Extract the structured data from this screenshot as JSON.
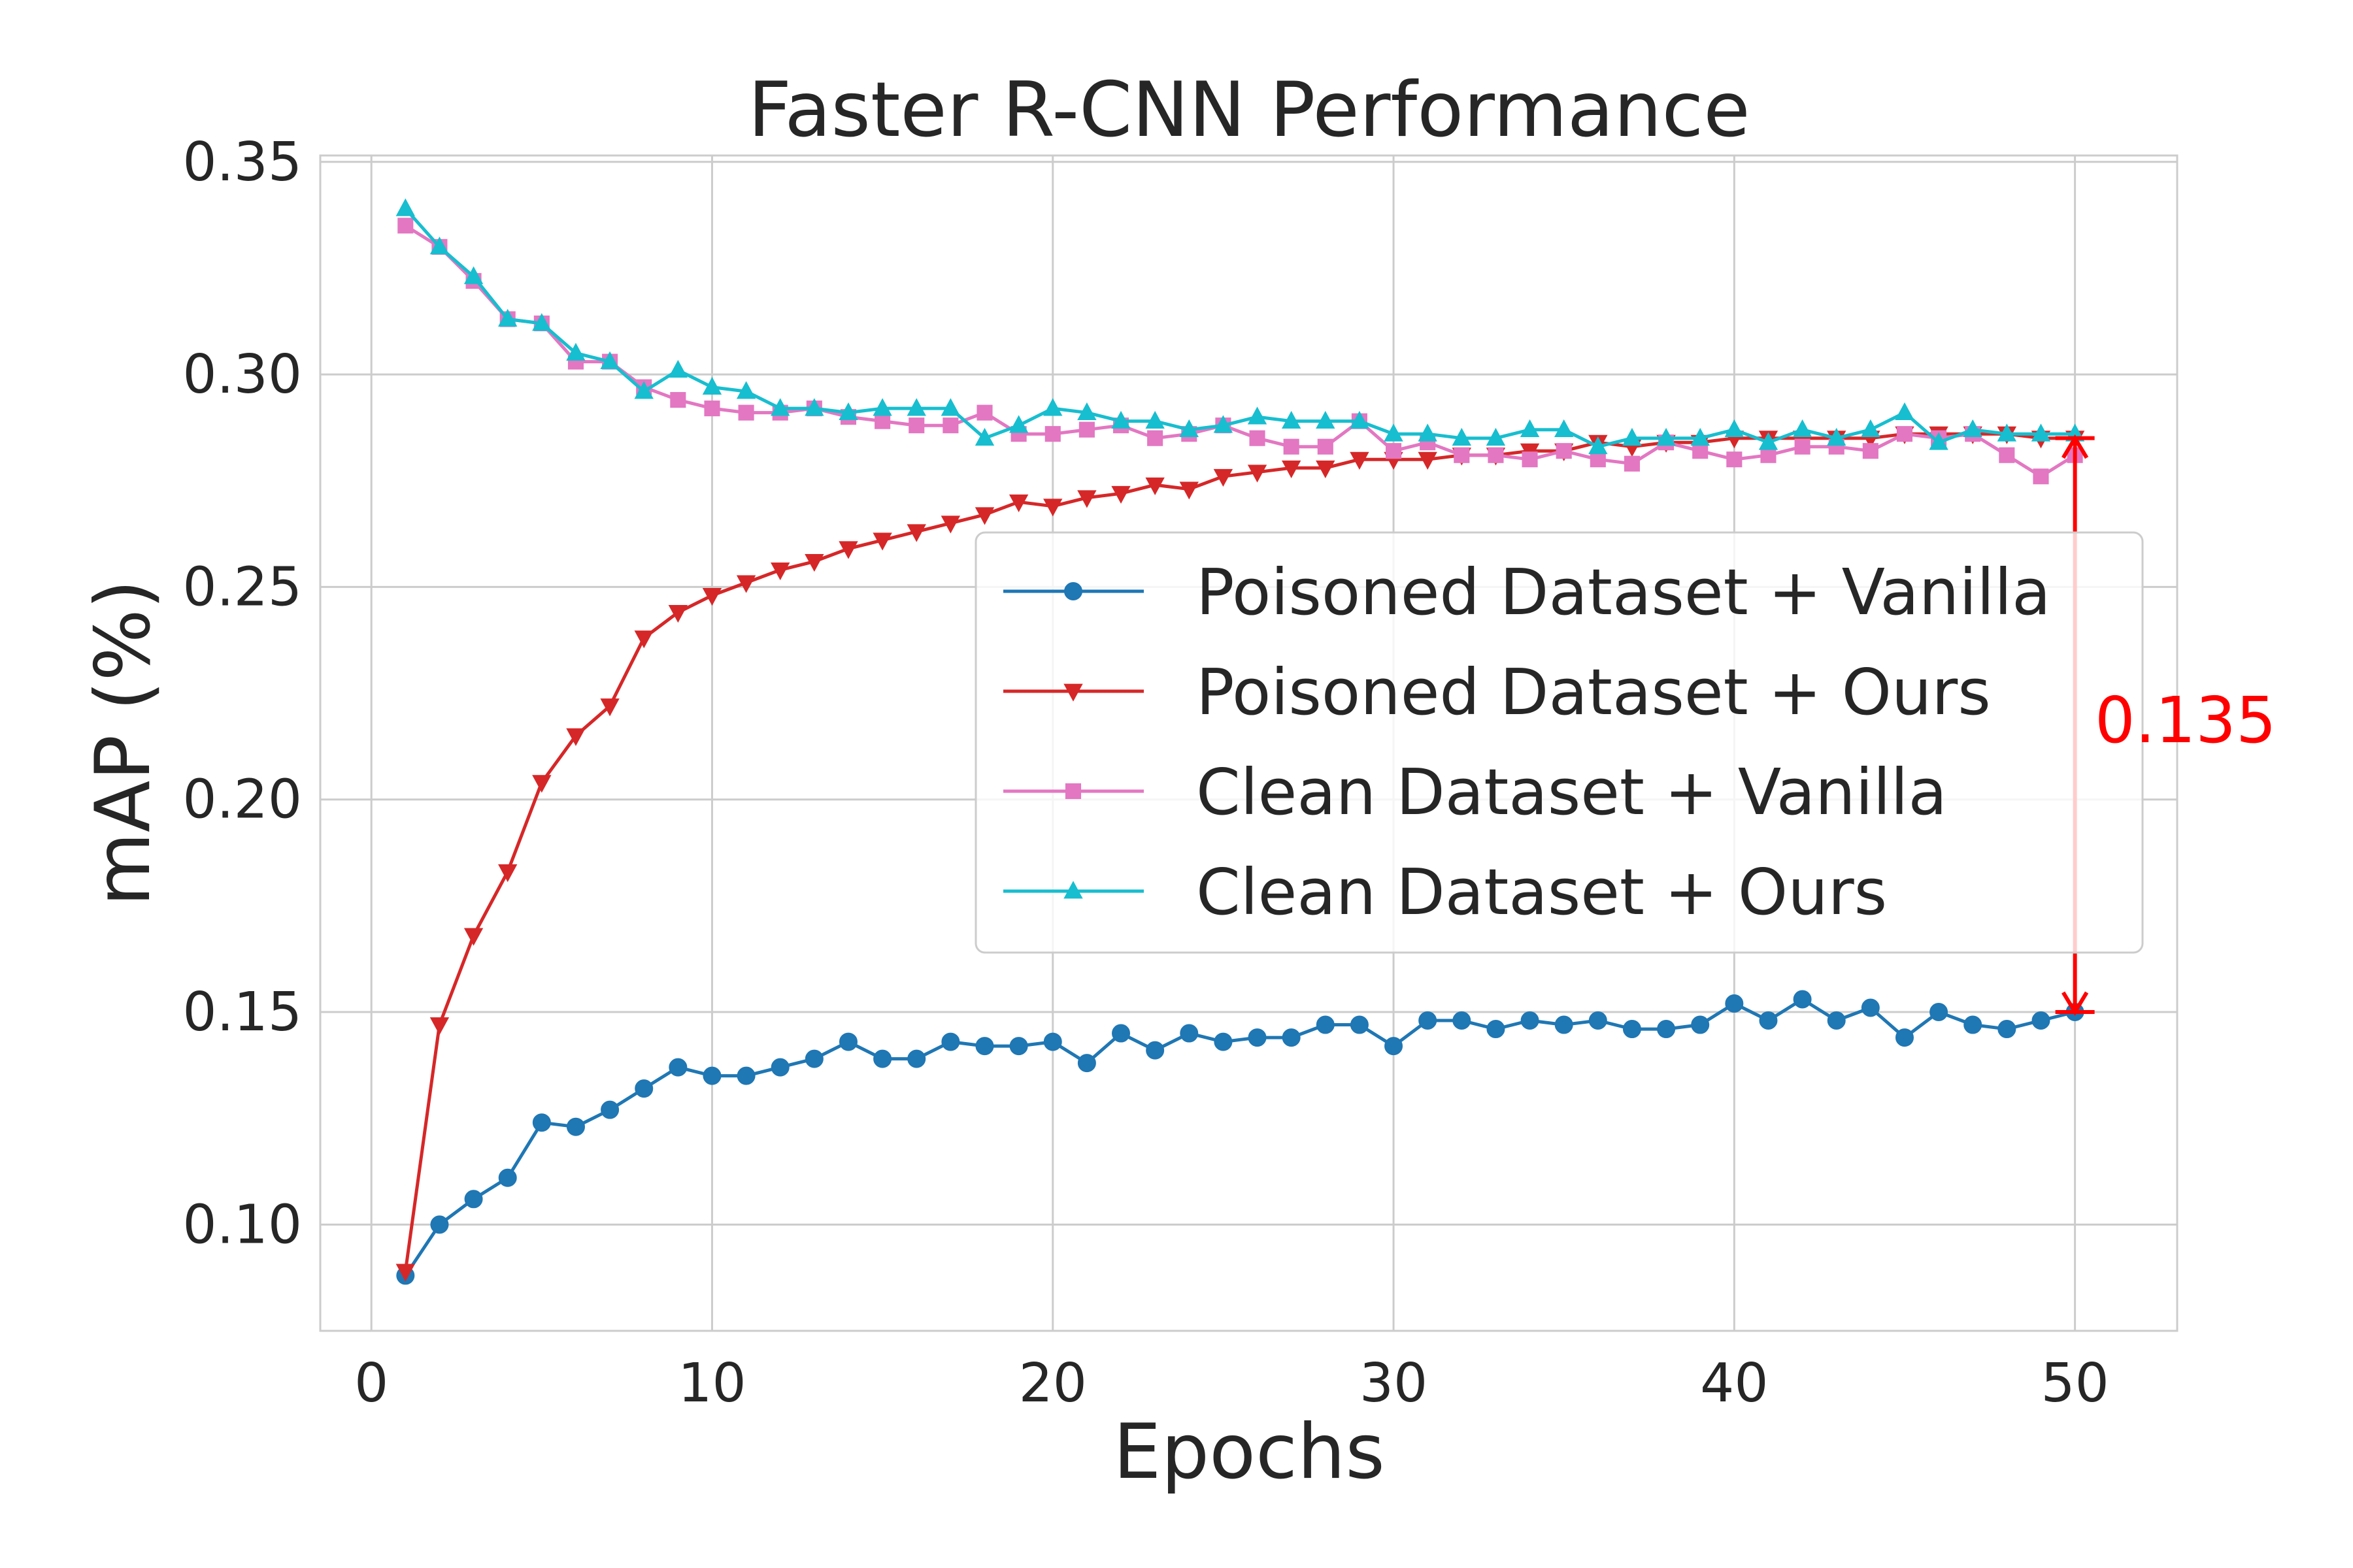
{
  "chart_data": {
    "type": "line",
    "title": "Faster R-CNN Performance",
    "xlabel": "Epochs",
    "ylabel": "mAP (%)",
    "xlim": [
      -1.5,
      53.0
    ],
    "ylim": [
      0.075,
      0.3515
    ],
    "xticks": [
      0,
      10,
      20,
      30,
      40,
      50
    ],
    "yticks": [
      0.1,
      0.15,
      0.2,
      0.25,
      0.3,
      0.35
    ],
    "xtick_labels": [
      "0",
      "10",
      "20",
      "30",
      "40",
      "50"
    ],
    "ytick_labels": [
      "0.10",
      "0.15",
      "0.20",
      "0.25",
      "0.30",
      "0.35"
    ],
    "grid": true,
    "legend_position": "center-right",
    "x": [
      1,
      2,
      3,
      4,
      5,
      6,
      7,
      8,
      9,
      10,
      11,
      12,
      13,
      14,
      15,
      16,
      17,
      18,
      19,
      20,
      21,
      22,
      23,
      24,
      25,
      26,
      27,
      28,
      29,
      30,
      31,
      32,
      33,
      34,
      35,
      36,
      37,
      38,
      39,
      40,
      41,
      42,
      43,
      44,
      45,
      46,
      47,
      48,
      49,
      50
    ],
    "series": [
      {
        "name": "Poisoned Dataset + Vanilla",
        "color": "#1f77b4",
        "marker": "circle",
        "values": [
          0.088,
          0.1,
          0.106,
          0.111,
          0.124,
          0.123,
          0.127,
          0.132,
          0.137,
          0.135,
          0.135,
          0.137,
          0.139,
          0.143,
          0.139,
          0.139,
          0.143,
          0.142,
          0.142,
          0.143,
          0.138,
          0.145,
          0.141,
          0.145,
          0.143,
          0.144,
          0.144,
          0.147,
          0.147,
          0.142,
          0.148,
          0.148,
          0.146,
          0.148,
          0.147,
          0.148,
          0.146,
          0.146,
          0.147,
          0.152,
          0.148,
          0.153,
          0.148,
          0.151,
          0.144,
          0.15,
          0.147,
          0.146,
          0.148,
          0.15
        ]
      },
      {
        "name": "Poisoned Dataset + Ours",
        "color": "#d62728",
        "marker": "triangle-down",
        "values": [
          0.089,
          0.147,
          0.168,
          0.183,
          0.204,
          0.215,
          0.222,
          0.238,
          0.244,
          0.248,
          0.251,
          0.254,
          0.256,
          0.259,
          0.261,
          0.263,
          0.265,
          0.267,
          0.27,
          0.269,
          0.271,
          0.272,
          0.274,
          0.273,
          0.276,
          0.277,
          0.278,
          0.278,
          0.28,
          0.28,
          0.28,
          0.281,
          0.281,
          0.282,
          0.282,
          0.284,
          0.283,
          0.284,
          0.284,
          0.285,
          0.285,
          0.285,
          0.285,
          0.285,
          0.286,
          0.286,
          0.286,
          0.286,
          0.285,
          0.285
        ]
      },
      {
        "name": "Clean Dataset + Vanilla",
        "color": "#e377c2",
        "marker": "square",
        "values": [
          0.335,
          0.33,
          0.322,
          0.313,
          0.312,
          0.303,
          0.303,
          0.297,
          0.294,
          0.292,
          0.291,
          0.291,
          0.292,
          0.29,
          0.289,
          0.288,
          0.288,
          0.291,
          0.286,
          0.286,
          0.287,
          0.288,
          0.285,
          0.286,
          0.288,
          0.285,
          0.283,
          0.283,
          0.289,
          0.282,
          0.284,
          0.281,
          0.281,
          0.28,
          0.282,
          0.28,
          0.279,
          0.284,
          0.282,
          0.28,
          0.281,
          0.283,
          0.283,
          0.282,
          0.286,
          0.285,
          0.286,
          0.281,
          0.276,
          0.281
        ]
      },
      {
        "name": "Clean Dataset + Ours",
        "color": "#17becf",
        "marker": "triangle-up",
        "values": [
          0.339,
          0.33,
          0.323,
          0.313,
          0.312,
          0.305,
          0.303,
          0.296,
          0.301,
          0.297,
          0.296,
          0.292,
          0.292,
          0.291,
          0.292,
          0.292,
          0.292,
          0.285,
          0.288,
          0.292,
          0.291,
          0.289,
          0.289,
          0.287,
          0.288,
          0.29,
          0.289,
          0.289,
          0.289,
          0.286,
          0.286,
          0.285,
          0.285,
          0.287,
          0.287,
          0.283,
          0.285,
          0.285,
          0.285,
          0.287,
          0.284,
          0.287,
          0.285,
          0.287,
          0.291,
          0.284,
          0.287,
          0.286,
          0.286,
          0.286
        ]
      }
    ],
    "annotation": {
      "text": "0.135",
      "color": "#ff0000",
      "x": 50,
      "y_from": 0.15,
      "y_to": 0.285
    }
  }
}
